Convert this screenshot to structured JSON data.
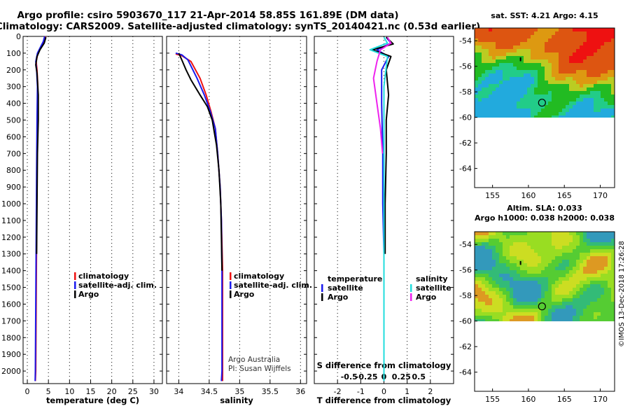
{
  "title": {
    "line1": "Argo profile: csiro 5903670_117 21-Apr-2014 58.85S 161.89E (DM data)",
    "line2": "Climatology: CARS2009. Satellite-adjusted climatology: synTS_20140421.nc (0.53d earlier)"
  },
  "colors": {
    "climatology": "#ee1111",
    "satellite": "#1a1aee",
    "argo": "#000000",
    "sal_satellite": "#22dddd",
    "sal_argo": "#ee22ee"
  },
  "chart_data": [
    {
      "type": "line",
      "name": "temperature-profile",
      "xlabel": "temperature (deg C)",
      "ylabel": "",
      "xlim": [
        -1,
        32
      ],
      "ylim": [
        2075,
        0
      ],
      "xticks": [
        0,
        5,
        10,
        15,
        20,
        25,
        30
      ],
      "yticks": [
        0,
        100,
        200,
        300,
        400,
        500,
        600,
        700,
        800,
        900,
        1000,
        1100,
        1200,
        1300,
        1400,
        1500,
        1600,
        1700,
        1800,
        1900,
        2000
      ],
      "legend": {
        "position": "center-right",
        "items": [
          "climatology",
          "satellite-adj. clim.",
          "Argo"
        ]
      },
      "series": [
        {
          "name": "climatology",
          "points": [
            [
              4.3,
              0
            ],
            [
              3.9,
              30
            ],
            [
              3.3,
              60
            ],
            [
              2.5,
              100
            ],
            [
              2.1,
              150
            ],
            [
              2.3,
              200
            ],
            [
              2.5,
              300
            ],
            [
              2.4,
              500
            ],
            [
              2.3,
              800
            ],
            [
              2.2,
              1200
            ],
            [
              2.1,
              1600
            ],
            [
              2.0,
              2000
            ],
            [
              1.9,
              2060
            ]
          ]
        },
        {
          "name": "satellite-adj. clim.",
          "points": [
            [
              4.1,
              0
            ],
            [
              3.8,
              30
            ],
            [
              3.2,
              60
            ],
            [
              2.4,
              100
            ],
            [
              2.0,
              150
            ],
            [
              2.2,
              200
            ],
            [
              2.4,
              300
            ],
            [
              2.3,
              500
            ],
            [
              2.2,
              800
            ],
            [
              2.1,
              1200
            ],
            [
              2.0,
              1600
            ],
            [
              1.9,
              2000
            ],
            [
              1.85,
              2060
            ]
          ]
        },
        {
          "name": "Argo",
          "points": [
            [
              4.4,
              5
            ],
            [
              4.0,
              40
            ],
            [
              3.0,
              80
            ],
            [
              2.3,
              120
            ],
            [
              2.0,
              170
            ],
            [
              2.3,
              220
            ],
            [
              2.6,
              350
            ],
            [
              2.6,
              500
            ],
            [
              2.4,
              700
            ],
            [
              2.3,
              1000
            ],
            [
              2.2,
              1300
            ]
          ]
        }
      ]
    },
    {
      "type": "line",
      "name": "salinity-profile",
      "xlabel": "salinity",
      "ylabel": "",
      "xlim": [
        33.8,
        36.1
      ],
      "ylim": [
        2075,
        0
      ],
      "xticks": [
        34,
        34.5,
        35,
        35.5,
        36
      ],
      "legend": {
        "position": "center-right",
        "items": [
          "climatology",
          "satellite-adj. clim.",
          "Argo"
        ]
      },
      "notes": [
        "Argo Australia",
        "PI: Susan Wijffels"
      ],
      "series": [
        {
          "name": "climatology",
          "points": [
            [
              33.95,
              105
            ],
            [
              34.05,
              115
            ],
            [
              34.2,
              150
            ],
            [
              34.35,
              250
            ],
            [
              34.45,
              350
            ],
            [
              34.53,
              450
            ],
            [
              34.6,
              550
            ],
            [
              34.64,
              700
            ],
            [
              34.68,
              900
            ],
            [
              34.7,
              1100
            ],
            [
              34.72,
              1400
            ],
            [
              34.72,
              1700
            ],
            [
              34.72,
              2000
            ],
            [
              34.72,
              2060
            ]
          ]
        },
        {
          "name": "satellite-adj. clim.",
          "points": [
            [
              33.95,
              100
            ],
            [
              34.05,
              110
            ],
            [
              34.15,
              140
            ],
            [
              34.3,
              250
            ],
            [
              34.42,
              350
            ],
            [
              34.52,
              450
            ],
            [
              34.6,
              550
            ],
            [
              34.64,
              700
            ],
            [
              34.68,
              900
            ],
            [
              34.7,
              1100
            ],
            [
              34.71,
              1400
            ],
            [
              34.71,
              1700
            ],
            [
              34.71,
              2000
            ],
            [
              34.7,
              2060
            ]
          ]
        },
        {
          "name": "Argo",
          "points": [
            [
              34.0,
              100
            ],
            [
              34.05,
              140
            ],
            [
              34.12,
              200
            ],
            [
              34.2,
              260
            ],
            [
              34.35,
              350
            ],
            [
              34.47,
              420
            ],
            [
              34.55,
              500
            ],
            [
              34.62,
              650
            ],
            [
              34.66,
              800
            ],
            [
              34.69,
              1000
            ],
            [
              34.7,
              1200
            ],
            [
              34.71,
              1400
            ]
          ]
        }
      ]
    },
    {
      "type": "line",
      "name": "difference-profile",
      "xlabel": "T difference from climatology",
      "x2label": "S difference from climatology",
      "ylabel": "",
      "xlim": [
        -3,
        3
      ],
      "ylim": [
        2075,
        0
      ],
      "xticks": [
        -2,
        -1,
        0,
        1,
        2
      ],
      "x2ticks": [
        -0.5,
        -0.25,
        0,
        0.25,
        0.5
      ],
      "legend": {
        "position": "center",
        "groups": [
          {
            "title": "temperature",
            "items": [
              "satellite",
              "Argo"
            ]
          },
          {
            "title": "salinity",
            "items": [
              "satellite",
              "Argo"
            ]
          }
        ]
      },
      "series": [
        {
          "name": "temperature satellite",
          "points": [
            [
              0.1,
              5
            ],
            [
              0.3,
              40
            ],
            [
              -0.3,
              80
            ],
            [
              0.2,
              120
            ],
            [
              -0.1,
              200
            ],
            [
              -0.1,
              400
            ],
            [
              -0.05,
              700
            ],
            [
              -0.05,
              1000
            ],
            [
              0,
              1300
            ],
            [
              0,
              1600
            ],
            [
              0,
              2000
            ],
            [
              0,
              2060
            ]
          ]
        },
        {
          "name": "temperature Argo",
          "points": [
            [
              0.1,
              5
            ],
            [
              0.4,
              45
            ],
            [
              -0.5,
              80
            ],
            [
              0.3,
              120
            ],
            [
              0.1,
              200
            ],
            [
              0.2,
              350
            ],
            [
              0.1,
              500
            ],
            [
              0.1,
              700
            ],
            [
              0.05,
              1000
            ],
            [
              0.05,
              1300
            ]
          ]
        },
        {
          "name": "salinity satellite",
          "points": [
            [
              0,
              5
            ],
            [
              0.05,
              40
            ],
            [
              -0.2,
              80
            ],
            [
              0.05,
              120
            ],
            [
              0,
              300
            ],
            [
              0,
              500
            ],
            [
              0,
              800
            ],
            [
              0,
              1200
            ],
            [
              0,
              1600
            ],
            [
              0,
              2000
            ],
            [
              0,
              2060
            ]
          ]
        },
        {
          "name": "salinity Argo",
          "points": [
            [
              0.05,
              5
            ],
            [
              0.1,
              40
            ],
            [
              -0.05,
              80
            ],
            [
              -0.1,
              150
            ],
            [
              -0.15,
              250
            ],
            [
              -0.1,
              400
            ],
            [
              -0.05,
              550
            ],
            [
              -0.02,
              700
            ]
          ]
        }
      ]
    },
    {
      "type": "heatmap",
      "name": "sst-map",
      "title": "sat. SST: 4.21 Argo: 4.15",
      "xlim": [
        152.5,
        172
      ],
      "ylim": [
        -65.5,
        -53
      ],
      "xticks": [
        155,
        160,
        165,
        170
      ],
      "yticks": [
        -54,
        -56,
        -58,
        -60,
        -62,
        -64
      ],
      "data_extent_lat": [
        -60,
        -53
      ],
      "marker": {
        "lon": 161.89,
        "lat": -58.85
      }
    },
    {
      "type": "heatmap",
      "name": "sla-map",
      "title": "Altim. SLA: 0.033",
      "subtitle": "Argo h1000: 0.038 h2000: 0.038",
      "xlim": [
        152.5,
        172
      ],
      "ylim": [
        -65.5,
        -53
      ],
      "xticks": [
        155,
        160,
        165,
        170
      ],
      "yticks": [
        -54,
        -56,
        -58,
        -60,
        -62,
        -64
      ],
      "data_extent_lat": [
        -60,
        -53
      ],
      "marker": {
        "lon": 161.89,
        "lat": -58.85
      }
    }
  ],
  "stamp": "©IMOS 13-Dec-2018 17:26:28"
}
